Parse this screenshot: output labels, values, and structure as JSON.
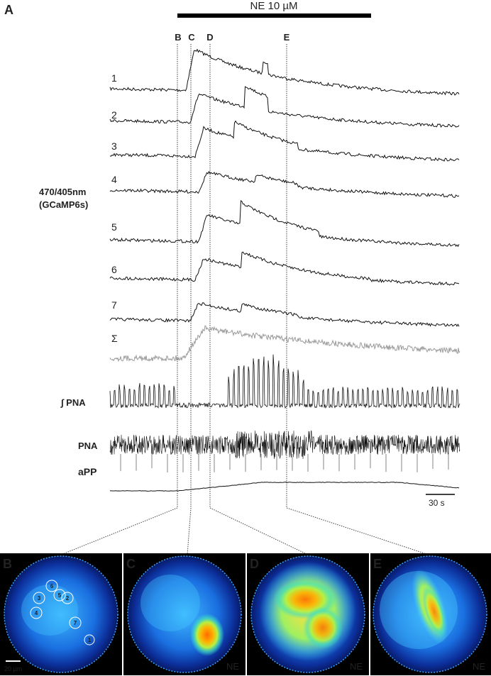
{
  "panel_a_label": "A",
  "drug_label": "NE 10 µM",
  "time_markers": [
    "B",
    "C",
    "D",
    "E"
  ],
  "y_axis_label_line1": "470/405nm",
  "y_axis_label_line2": "(GCaMP6s)",
  "trace_labels": [
    "1",
    "2",
    "3",
    "4",
    "5",
    "6",
    "7",
    "Σ"
  ],
  "int_pna_label": "∫ PNA",
  "pna_label": "PNA",
  "app_label": "aPP",
  "scalebar_time_label": "30 s",
  "image_panels": [
    {
      "letter": "B",
      "tag": ""
    },
    {
      "letter": "C",
      "tag": "NE"
    },
    {
      "letter": "D",
      "tag": "NE"
    },
    {
      "letter": "E",
      "tag": "NE"
    }
  ],
  "roi_labels": [
    "1",
    "2",
    "3",
    "4",
    "5",
    "6",
    "7"
  ],
  "scalebar_space_label": "20 µm",
  "colors": {
    "trace": "#111111",
    "sum_trace": "#9a9a9a",
    "dish_dark": "#0a1f7a",
    "dish_mid": "#1e90ff",
    "hot": "#ff8a00"
  }
}
